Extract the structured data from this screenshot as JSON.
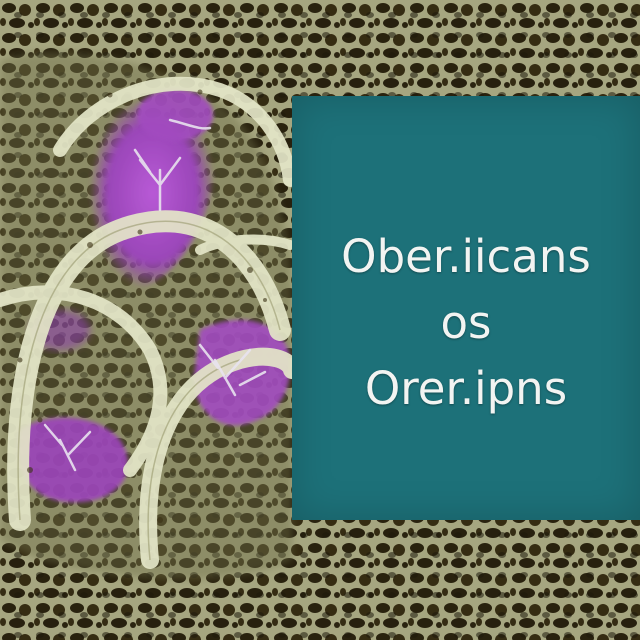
{
  "image": {
    "title_lines": [
      "Ober.iicans",
      "os",
      "Orer.ipns"
    ],
    "colors": {
      "panel": "#1d7179",
      "text": "#f2f4f2",
      "mesh": "#cfcfa8",
      "mesh_shadow": "#3a3014",
      "cell_purple": "#a24cc0",
      "background_dark": "#2a2410"
    },
    "subject": "bone-like porous mesh texture with purple cell shapes"
  }
}
